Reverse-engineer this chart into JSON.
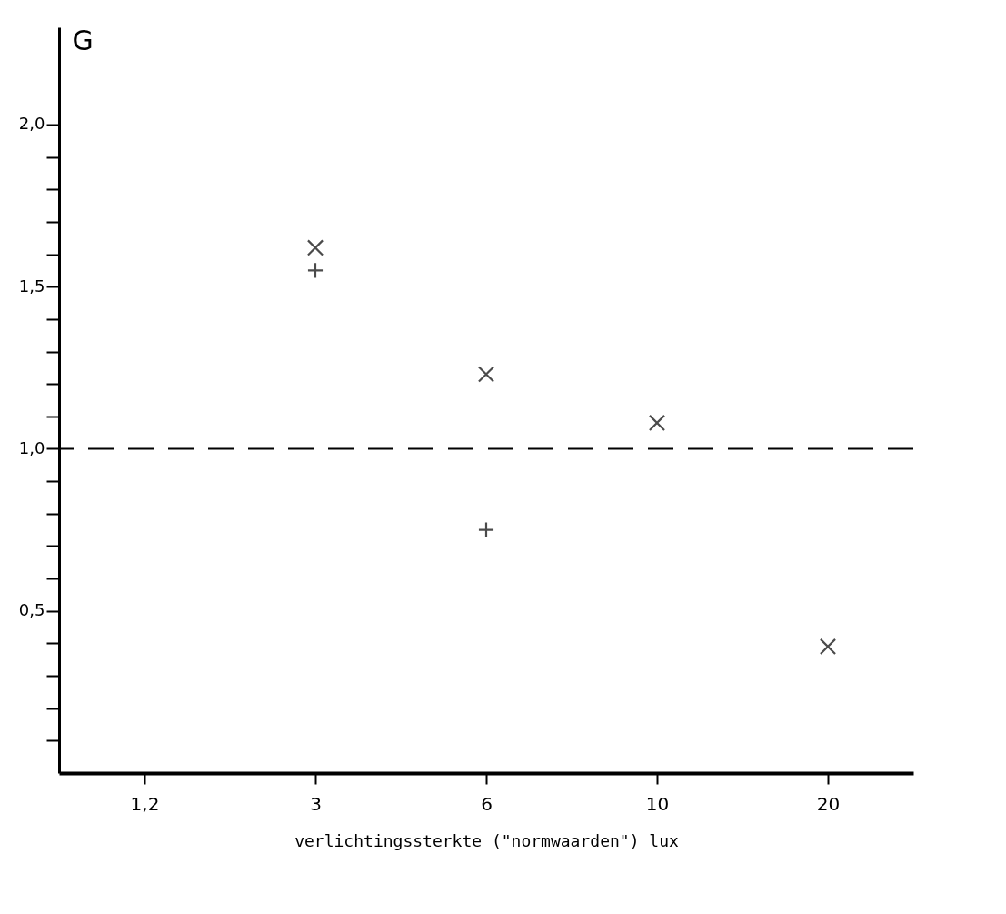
{
  "chart_data": {
    "type": "scatter",
    "ylabel": "G",
    "xlabel": "verlichtingssterkte (\"normwaarden\") lux",
    "categories": [
      "1,2",
      "3",
      "6",
      "10",
      "20"
    ],
    "series": [
      {
        "color": "#000000",
        "marker": "x",
        "x": [
          "3",
          "6",
          "10",
          "20"
        ],
        "values": [
          1.62,
          1.23,
          1.08,
          0.39
        ]
      },
      {
        "color": "#000000",
        "marker": "cross",
        "x": [
          "3",
          "6"
        ],
        "values": [
          1.55,
          0.75
        ]
      }
    ],
    "ylim": [
      0,
      2.3
    ],
    "yticks": [
      {
        "value": 0.1,
        "label": null
      },
      {
        "value": 0.2,
        "label": null
      },
      {
        "value": 0.3,
        "label": null
      },
      {
        "value": 0.4,
        "label": null
      },
      {
        "value": 0.5,
        "label": "0,5"
      },
      {
        "value": 0.6,
        "label": null
      },
      {
        "value": 0.7,
        "label": null
      },
      {
        "value": 0.8,
        "label": null
      },
      {
        "value": 0.9,
        "label": null
      },
      {
        "value": 1.0,
        "label": "1,0"
      },
      {
        "value": 1.1,
        "label": null
      },
      {
        "value": 1.2,
        "label": null
      },
      {
        "value": 1.3,
        "label": null
      },
      {
        "value": 1.4,
        "label": null
      },
      {
        "value": 1.5,
        "label": "1,5"
      },
      {
        "value": 1.6,
        "label": null
      },
      {
        "value": 1.7,
        "label": null
      },
      {
        "value": 1.8,
        "label": null
      },
      {
        "value": 1.9,
        "label": null
      },
      {
        "value": 2.0,
        "label": "2,0"
      }
    ],
    "ref_lines": [
      {
        "axis": "y",
        "value": 1.0,
        "line_style": "dashed",
        "color": "#000000"
      }
    ],
    "grid": false
  }
}
